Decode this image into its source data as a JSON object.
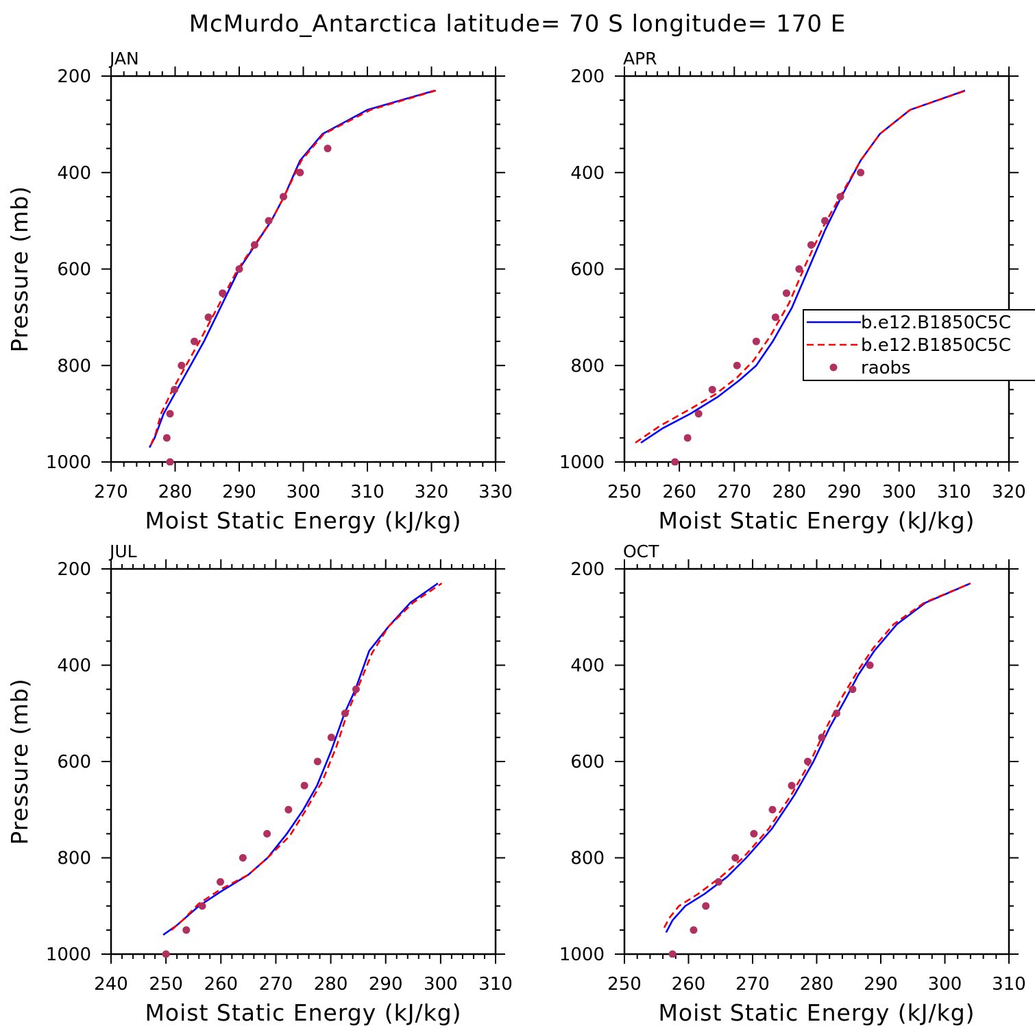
{
  "title": "McMurdo_Antarctica  latitude= 70 S longitude= 170 E",
  "chart_data": [
    {
      "type": "line",
      "panel_title": "JAN",
      "xlabel": "Moist Static Energy (kJ/kg)",
      "ylabel": "Pressure (mb)",
      "xlim": [
        270,
        330
      ],
      "xticks": [
        270,
        280,
        290,
        300,
        310,
        320,
        330
      ],
      "ylim": [
        1000,
        200
      ],
      "yticks": [
        200,
        400,
        600,
        800,
        1000
      ],
      "y_inverted": true,
      "series": [
        {
          "style": "solid",
          "color": "#0000ff",
          "x": [
            276.0,
            276.8,
            278.2,
            280.3,
            284.5,
            290.0,
            295.0,
            297.0,
            299.5,
            303.0,
            310.0,
            320.5
          ],
          "y": [
            970,
            950,
            900,
            850,
            750,
            600,
            500,
            450,
            375,
            320,
            270,
            230
          ]
        },
        {
          "style": "dashed",
          "color": "#ff0000",
          "x": [
            276.2,
            277.0,
            277.8,
            279.6,
            283.8,
            289.8,
            295.0,
            297.0,
            299.7,
            303.2,
            310.5,
            320.7
          ],
          "y": [
            965,
            940,
            900,
            850,
            750,
            600,
            500,
            450,
            375,
            320,
            270,
            230
          ]
        },
        {
          "style": "points",
          "color": "#b03060",
          "x": [
            279.2,
            278.7,
            279.2,
            279.9,
            281.0,
            283.0,
            285.2,
            287.4,
            290.0,
            292.4,
            294.6,
            296.9,
            299.5,
            303.8
          ],
          "y": [
            1000,
            950,
            900,
            850,
            800,
            750,
            700,
            650,
            600,
            550,
            500,
            450,
            400,
            350
          ]
        }
      ]
    },
    {
      "type": "line",
      "panel_title": "APR",
      "xlabel": "Moist Static Energy (kJ/kg)",
      "ylabel": "",
      "xlim": [
        250,
        320
      ],
      "xticks": [
        250,
        260,
        270,
        280,
        290,
        300,
        310,
        320
      ],
      "ylim": [
        1000,
        200
      ],
      "yticks": [
        200,
        400,
        600,
        800,
        1000
      ],
      "y_inverted": true,
      "series": [
        {
          "style": "solid",
          "color": "#0000ff",
          "x": [
            253.0,
            257.0,
            262.0,
            267.0,
            271.0,
            274.0,
            277.0,
            280.5,
            283.5,
            286.5,
            289.5,
            293.0,
            296.5,
            302.0,
            312.0
          ],
          "y": [
            960,
            930,
            900,
            865,
            830,
            800,
            750,
            680,
            600,
            520,
            450,
            375,
            320,
            270,
            230
          ]
        },
        {
          "style": "dashed",
          "color": "#ff0000",
          "x": [
            252.0,
            256.5,
            262.0,
            266.5,
            270.5,
            273.5,
            276.5,
            280.0,
            283.0,
            286.3,
            289.5,
            293.0,
            296.5,
            302.0,
            312.2
          ],
          "y": [
            960,
            925,
            890,
            860,
            825,
            790,
            740,
            670,
            590,
            510,
            445,
            375,
            320,
            270,
            230
          ]
        },
        {
          "style": "points",
          "color": "#b03060",
          "x": [
            259.2,
            261.5,
            263.5,
            266.0,
            270.5,
            274.0,
            277.5,
            279.5,
            281.8,
            284.0,
            286.5,
            289.3,
            293.0
          ],
          "y": [
            1000,
            950,
            900,
            850,
            800,
            750,
            700,
            650,
            600,
            550,
            500,
            450,
            400
          ]
        }
      ],
      "legend": {
        "placement": "right",
        "entries": [
          "b.e12.B1850C5C",
          "b.e12.B1850C5C",
          "raobs"
        ]
      }
    },
    {
      "type": "line",
      "panel_title": "JUL",
      "xlabel": "Moist Static Energy (kJ/kg)",
      "ylabel": "Pressure (mb)",
      "xlim": [
        240,
        310
      ],
      "xticks": [
        240,
        250,
        260,
        270,
        280,
        290,
        300,
        310
      ],
      "ylim": [
        1000,
        200
      ],
      "yticks": [
        200,
        400,
        600,
        800,
        1000
      ],
      "y_inverted": true,
      "series": [
        {
          "style": "solid",
          "color": "#0000ff",
          "x": [
            249.5,
            252.0,
            256.0,
            260.0,
            265.0,
            268.5,
            272.0,
            275.0,
            277.5,
            280.0,
            282.5,
            284.5,
            287.0,
            290.5,
            294.5,
            299.5
          ],
          "y": [
            960,
            940,
            900,
            870,
            835,
            800,
            750,
            700,
            650,
            580,
            500,
            450,
            370,
            320,
            270,
            230
          ]
        },
        {
          "style": "dashed",
          "color": "#ff0000",
          "x": [
            251.0,
            253.0,
            256.0,
            260.0,
            265.0,
            268.5,
            272.5,
            275.5,
            278.5,
            281.0,
            283.0,
            285.0,
            287.5,
            290.5,
            295.0,
            300.2
          ],
          "y": [
            950,
            930,
            895,
            865,
            835,
            800,
            755,
            700,
            640,
            570,
            500,
            445,
            375,
            320,
            270,
            230
          ]
        },
        {
          "style": "points",
          "color": "#b03060",
          "x": [
            250.0,
            253.7,
            256.6,
            259.9,
            264.0,
            268.4,
            272.3,
            275.2,
            277.6,
            280.1,
            282.6,
            284.6
          ],
          "y": [
            1000,
            950,
            900,
            850,
            800,
            750,
            700,
            650,
            600,
            550,
            500,
            450
          ]
        }
      ]
    },
    {
      "type": "line",
      "panel_title": "OCT",
      "xlabel": "Moist Static Energy (kJ/kg)",
      "ylabel": "",
      "xlim": [
        250,
        310
      ],
      "xticks": [
        250,
        260,
        270,
        280,
        290,
        300,
        310
      ],
      "ylim": [
        1000,
        200
      ],
      "yticks": [
        200,
        400,
        600,
        800,
        1000
      ],
      "y_inverted": true,
      "series": [
        {
          "style": "solid",
          "color": "#0000ff",
          "x": [
            256.5,
            257.5,
            259.5,
            262.5,
            266.0,
            269.0,
            273.0,
            276.5,
            279.5,
            282.0,
            284.5,
            286.5,
            289.0,
            292.5,
            297.0,
            304.0
          ],
          "y": [
            955,
            930,
            900,
            875,
            840,
            800,
            740,
            670,
            600,
            530,
            470,
            420,
            370,
            315,
            270,
            230
          ]
        },
        {
          "style": "dashed",
          "color": "#ff0000",
          "x": [
            256.2,
            257.0,
            258.5,
            261.5,
            265.0,
            268.5,
            272.5,
            276.0,
            279.0,
            281.5,
            284.0,
            286.5,
            288.8,
            292.0,
            296.8,
            304.0
          ],
          "y": [
            945,
            925,
            900,
            875,
            840,
            800,
            740,
            670,
            600,
            530,
            465,
            410,
            365,
            315,
            270,
            230
          ]
        },
        {
          "style": "points",
          "color": "#b03060",
          "x": [
            257.5,
            260.8,
            262.7,
            264.7,
            267.3,
            270.2,
            273.1,
            276.1,
            278.6,
            280.8,
            283.1,
            285.6,
            288.3
          ],
          "y": [
            1000,
            950,
            900,
            850,
            800,
            750,
            700,
            650,
            600,
            550,
            500,
            450,
            400
          ]
        }
      ]
    }
  ]
}
